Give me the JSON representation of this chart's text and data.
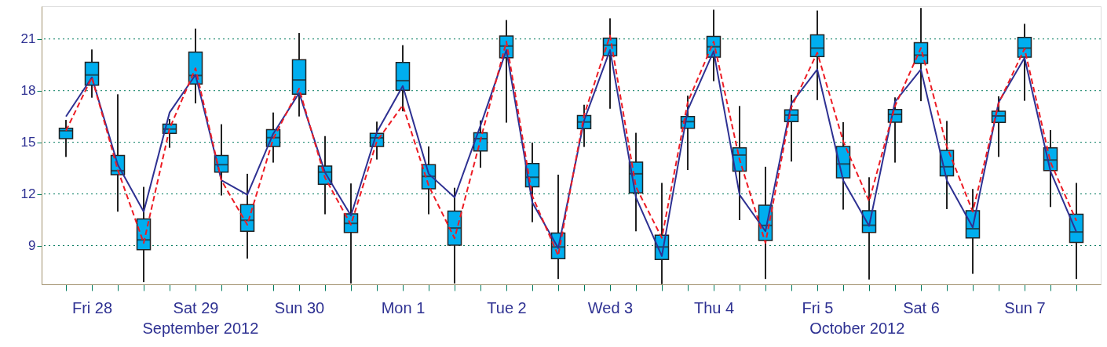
{
  "chart_data": {
    "type": "box",
    "categories": [
      null,
      "Fri 28",
      null,
      null,
      null,
      "Sat 29",
      null,
      null,
      null,
      "Sun 30",
      null,
      null,
      null,
      "Mon  1",
      null,
      null,
      null,
      "Tue  2",
      null,
      null,
      null,
      "Wed  3",
      null,
      null,
      null,
      "Thu  4",
      null,
      null,
      null,
      "Fri  5",
      null,
      null,
      null,
      "Sat  6",
      null,
      null,
      null,
      "Sun  7",
      null,
      null
    ],
    "boxes": [
      {
        "low": 14.15,
        "q1": 15.21,
        "median": 15.67,
        "q3": 15.82,
        "high": 16.3
      },
      {
        "low": 17.59,
        "q1": 18.32,
        "median": 18.91,
        "q3": 19.65,
        "high": 20.39
      },
      {
        "low": 10.97,
        "q1": 13.12,
        "median": 13.35,
        "q3": 14.23,
        "high": 17.79
      },
      {
        "low": 6.88,
        "q1": 8.76,
        "median": 9.33,
        "q3": 10.55,
        "high": 12.41
      },
      {
        "low": 14.68,
        "q1": 15.52,
        "median": 15.77,
        "q3": 16.05,
        "high": 16.35
      },
      {
        "low": 17.26,
        "q1": 18.39,
        "median": 18.88,
        "q3": 20.24,
        "high": 21.6
      },
      {
        "low": 11.91,
        "q1": 13.27,
        "median": 13.7,
        "q3": 14.23,
        "high": 16.05
      },
      {
        "low": 8.24,
        "q1": 9.83,
        "median": 10.47,
        "q3": 11.38,
        "high": 13.17
      },
      {
        "low": 13.82,
        "q1": 14.76,
        "median": 15.27,
        "q3": 15.74,
        "high": 16.73
      },
      {
        "low": 16.5,
        "q1": 17.79,
        "median": 18.62,
        "q3": 19.79,
        "high": 21.35
      },
      {
        "low": 10.82,
        "q1": 12.56,
        "median": 13.27,
        "q3": 13.62,
        "high": 15.36
      },
      {
        "low": 6.8,
        "q1": 9.76,
        "median": 10.29,
        "q3": 10.85,
        "high": 12.61
      },
      {
        "low": 14.0,
        "q1": 14.76,
        "median": 15.26,
        "q3": 15.52,
        "high": 16.2
      },
      {
        "low": 16.8,
        "q1": 18.02,
        "median": 18.58,
        "q3": 19.64,
        "high": 20.64
      },
      {
        "low": 10.82,
        "q1": 12.3,
        "median": 13.02,
        "q3": 13.7,
        "high": 14.76
      },
      {
        "low": 6.8,
        "q1": 9.03,
        "median": 10.02,
        "q3": 11.0,
        "high": 12.36
      },
      {
        "low": 13.52,
        "q1": 14.5,
        "median": 15.21,
        "q3": 15.55,
        "high": 16.27
      },
      {
        "low": 16.14,
        "q1": 19.91,
        "median": 20.59,
        "q3": 21.17,
        "high": 22.1
      },
      {
        "low": 10.36,
        "q1": 12.41,
        "median": 12.97,
        "q3": 13.77,
        "high": 14.98
      },
      {
        "low": 7.06,
        "q1": 8.24,
        "median": 8.92,
        "q3": 9.73,
        "high": 13.12
      },
      {
        "low": 14.73,
        "q1": 15.79,
        "median": 16.18,
        "q3": 16.55,
        "high": 17.18
      },
      {
        "low": 16.95,
        "q1": 20.03,
        "median": 20.64,
        "q3": 21.05,
        "high": 22.2
      },
      {
        "low": 9.83,
        "q1": 12.06,
        "median": 13.17,
        "q3": 13.85,
        "high": 15.55
      },
      {
        "low": 6.76,
        "q1": 8.2,
        "median": 8.92,
        "q3": 9.61,
        "high": 12.64
      },
      {
        "low": 13.39,
        "q1": 15.82,
        "median": 16.2,
        "q3": 16.5,
        "high": 17.71
      },
      {
        "low": 18.55,
        "q1": 19.94,
        "median": 20.55,
        "q3": 21.15,
        "high": 22.7
      },
      {
        "low": 10.48,
        "q1": 13.32,
        "median": 14.26,
        "q3": 14.68,
        "high": 17.11
      },
      {
        "low": 7.06,
        "q1": 9.3,
        "median": 10.17,
        "q3": 11.35,
        "high": 13.58
      },
      {
        "low": 13.88,
        "q1": 16.2,
        "median": 16.58,
        "q3": 16.88,
        "high": 17.76
      },
      {
        "low": 17.45,
        "q1": 19.98,
        "median": 20.47,
        "q3": 21.24,
        "high": 22.65
      },
      {
        "low": 11.09,
        "q1": 12.94,
        "median": 13.74,
        "q3": 14.76,
        "high": 16.17
      },
      {
        "low": 7.03,
        "q1": 9.76,
        "median": 10.18,
        "q3": 11.03,
        "high": 12.97
      },
      {
        "low": 13.82,
        "q1": 16.17,
        "median": 16.62,
        "q3": 16.91,
        "high": 17.61
      },
      {
        "low": 17.39,
        "q1": 19.58,
        "median": 20.06,
        "q3": 20.79,
        "high": 22.8
      },
      {
        "low": 11.12,
        "q1": 13.05,
        "median": 13.58,
        "q3": 14.53,
        "high": 16.24
      },
      {
        "low": 7.36,
        "q1": 9.45,
        "median": 9.98,
        "q3": 11.03,
        "high": 12.29
      },
      {
        "low": 14.15,
        "q1": 16.15,
        "median": 16.53,
        "q3": 16.8,
        "high": 17.67
      },
      {
        "low": 17.41,
        "q1": 19.94,
        "median": 20.47,
        "q3": 21.09,
        "high": 21.88
      },
      {
        "low": 11.24,
        "q1": 13.36,
        "median": 13.97,
        "q3": 14.68,
        "high": 15.71
      },
      {
        "low": 7.06,
        "q1": 9.18,
        "median": 9.79,
        "q3": 10.82,
        "high": 12.64
      }
    ],
    "color": "#00aeef",
    "series": [
      {
        "type": "line",
        "color": "#2e3192",
        "line_style": "solid",
        "values": [
          16.5,
          18.77,
          13.7,
          10.97,
          16.73,
          18.92,
          12.79,
          11.95,
          15.5,
          17.86,
          13.24,
          10.74,
          15.59,
          18.27,
          13.17,
          11.8,
          15.97,
          20.36,
          11.5,
          8.85,
          16.27,
          20.36,
          11.8,
          8.39,
          16.88,
          20.29,
          11.95,
          9.83,
          17.26,
          19.23,
          12.79,
          10.14,
          17.36,
          19.23,
          12.79,
          10.06,
          17.33,
          19.91,
          13.32,
          9.79
        ]
      },
      {
        "type": "line",
        "color": "#ed1c24",
        "line_style": "dashed",
        "values": [
          15.67,
          18.77,
          13.4,
          9.15,
          15.8,
          19.3,
          12.79,
          10.21,
          15.2,
          18.12,
          12.94,
          10.21,
          15.06,
          17.15,
          12.48,
          9.42,
          15.14,
          20.85,
          11.88,
          8.42,
          16.58,
          21.2,
          12.41,
          9.45,
          17.33,
          20.85,
          14.0,
          9.15,
          17.03,
          20.21,
          15.06,
          11.58,
          17.1,
          20.48,
          14.76,
          10.97,
          17.26,
          20.44,
          13.85,
          10.44
        ]
      }
    ],
    "ylim": [
      6.75,
      22.9
    ],
    "yticks": [
      9,
      12,
      15,
      18,
      21
    ],
    "grid": "y",
    "annotations": [
      "September 2012",
      "October 2012"
    ]
  }
}
